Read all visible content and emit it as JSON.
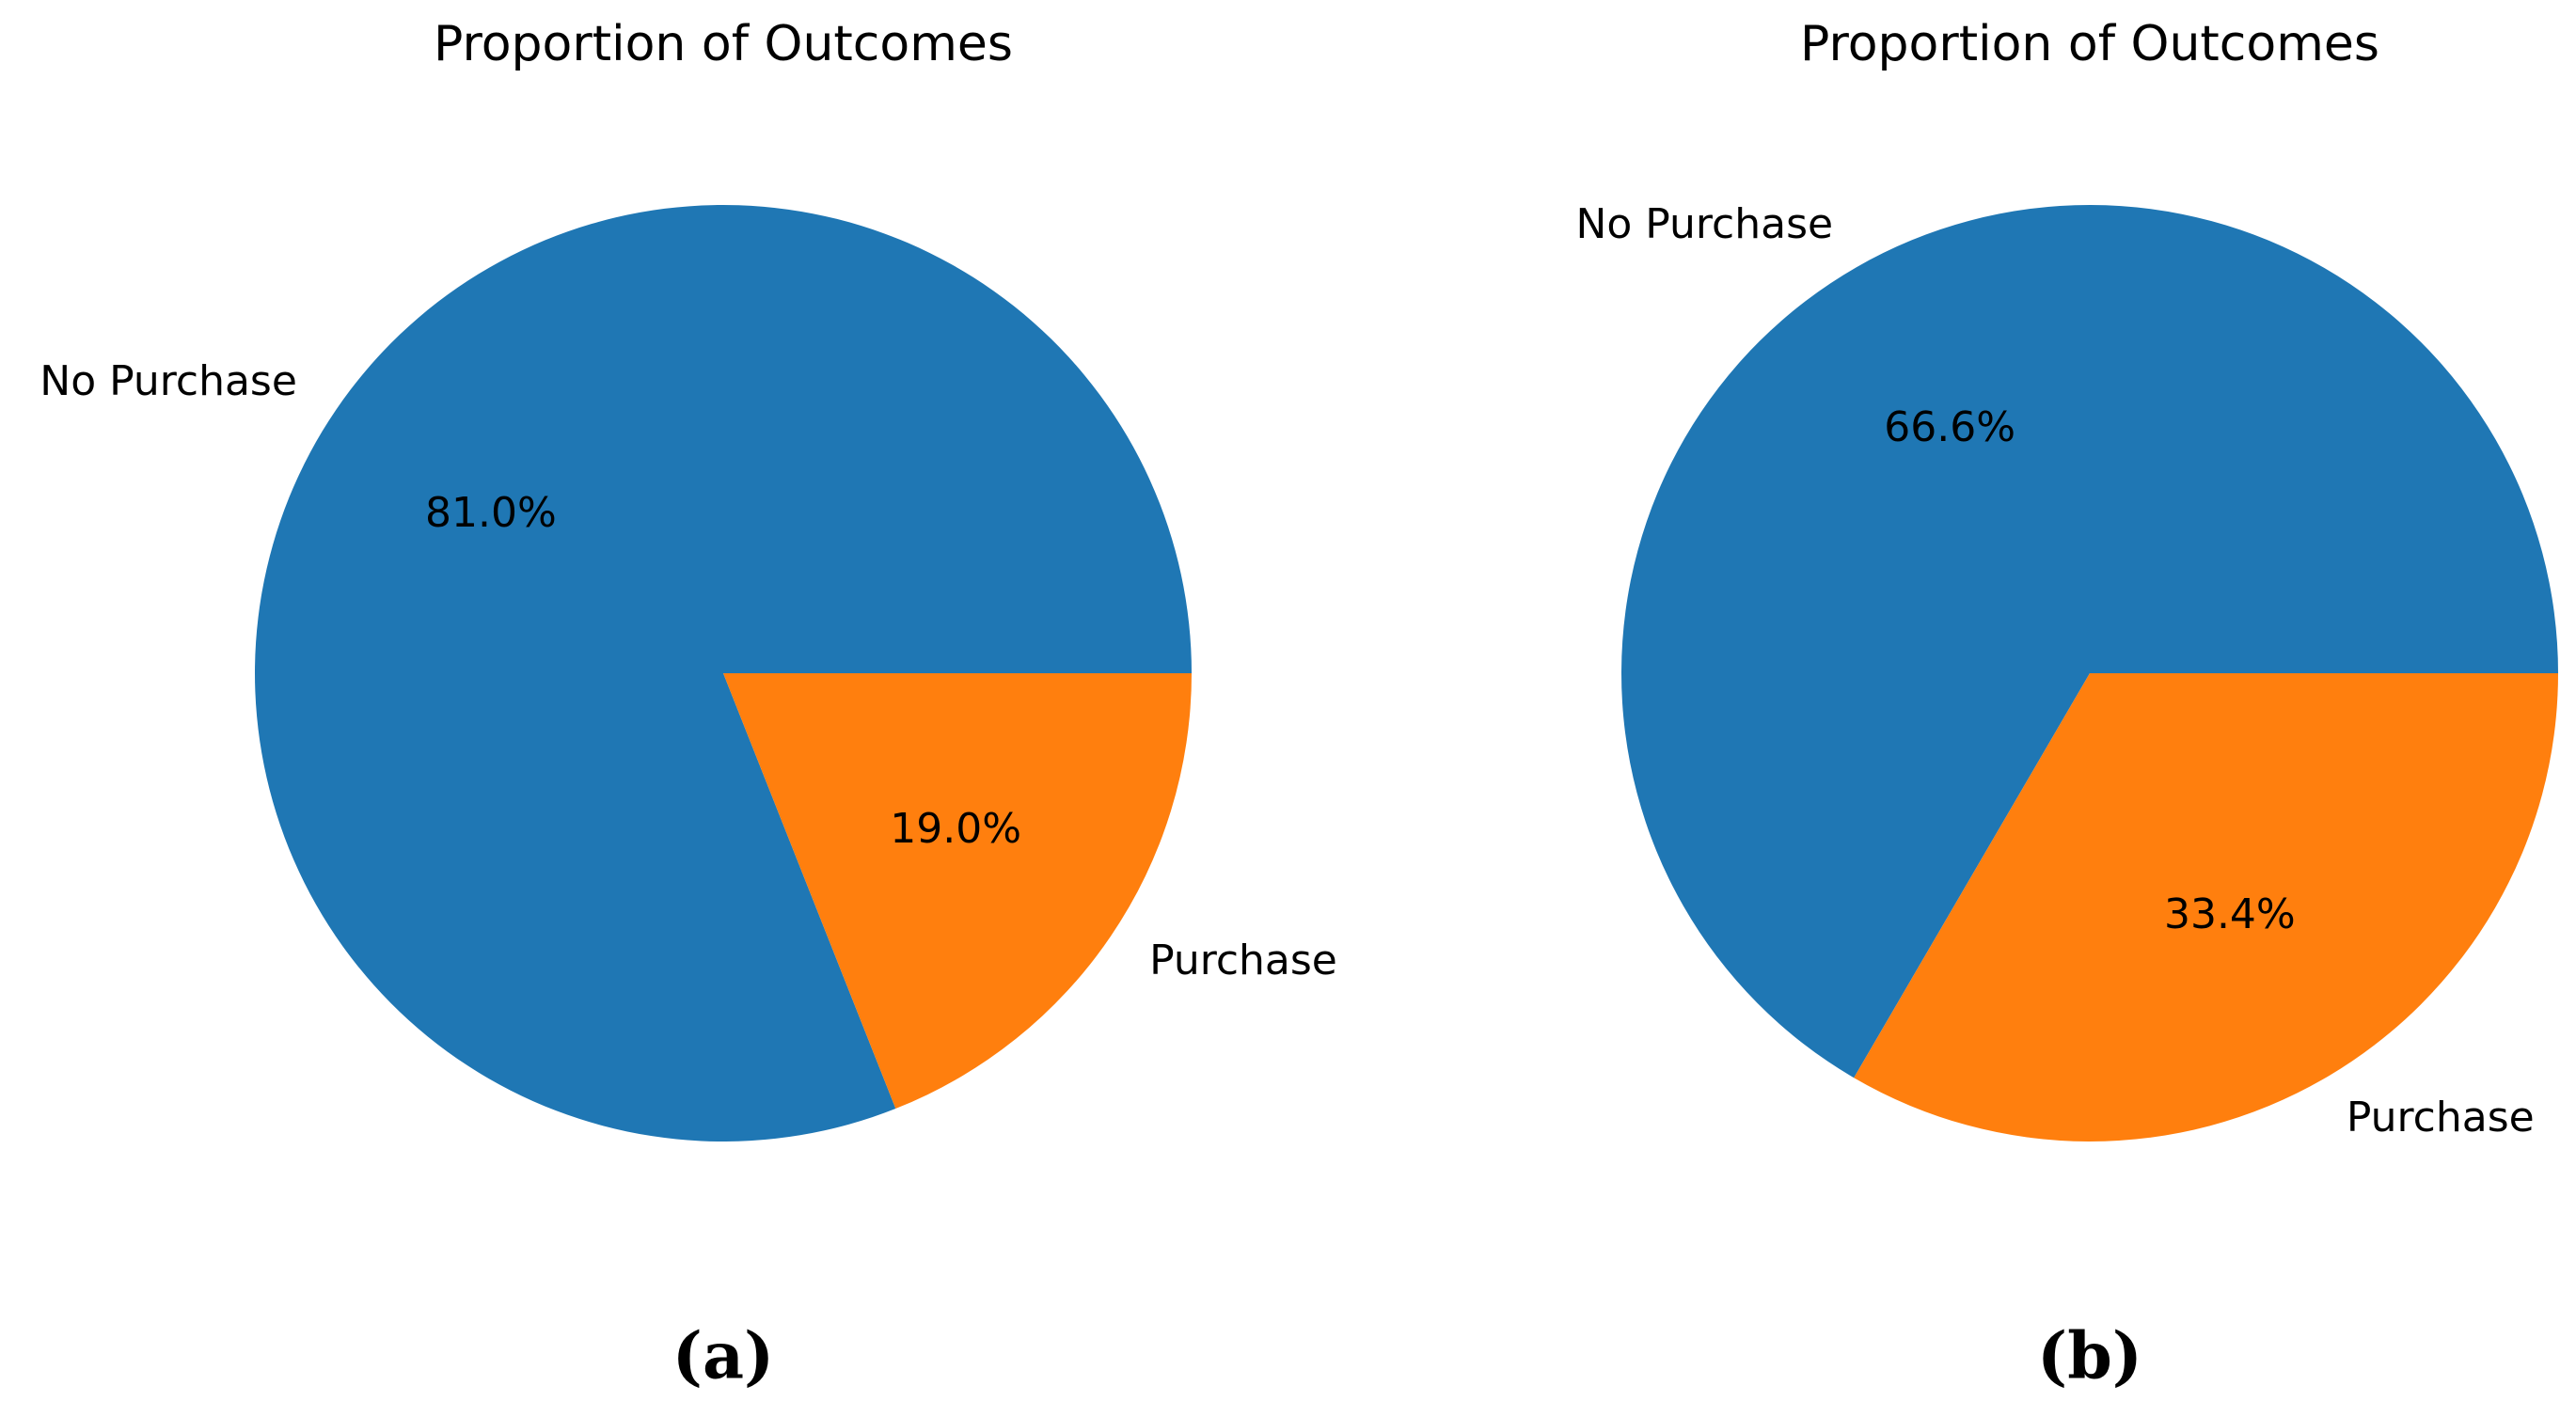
{
  "chart_data": [
    {
      "type": "pie",
      "title": "Proportion of Outcomes",
      "categories": [
        "No Purchase",
        "Purchase"
      ],
      "values": [
        81.0,
        19.0
      ],
      "value_labels": [
        "81.0%",
        "19.0%"
      ],
      "colors": [
        "#1f77b4",
        "#ff7f0e"
      ],
      "caption": "(a)"
    },
    {
      "type": "pie",
      "title": "Proportion of Outcomes",
      "categories": [
        "No Purchase",
        "Purchase"
      ],
      "values": [
        66.6,
        33.4
      ],
      "value_labels": [
        "66.6%",
        "33.4%"
      ],
      "colors": [
        "#1f77b4",
        "#ff7f0e"
      ],
      "caption": "(b)"
    }
  ]
}
